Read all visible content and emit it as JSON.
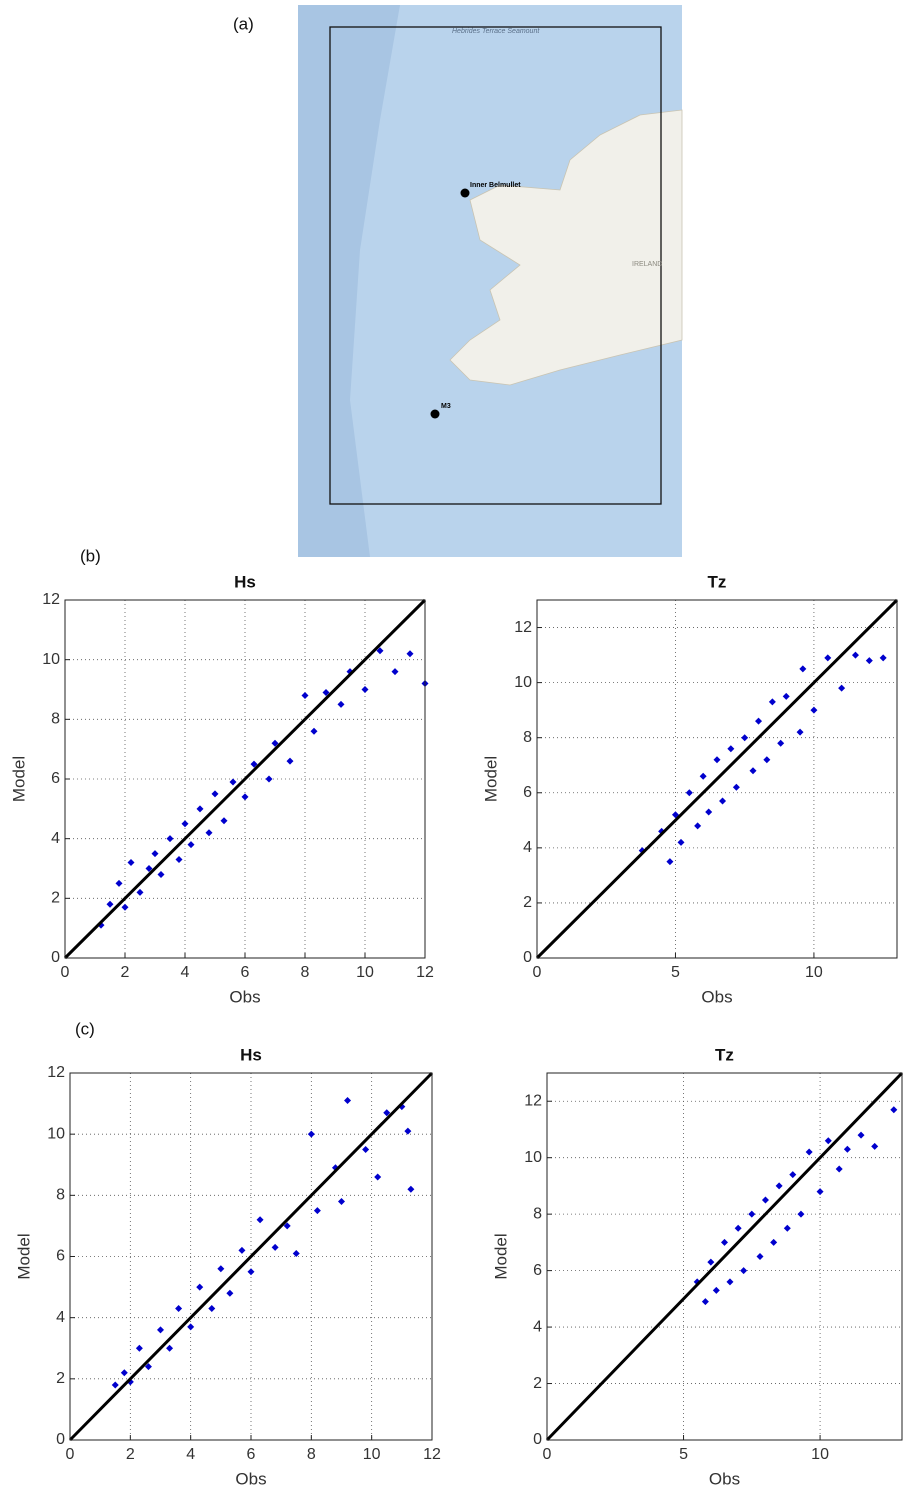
{
  "map": {
    "panel_label": "(a)",
    "labels": [
      "Inner Belmullet",
      "M3",
      "IRELAND",
      "Hebrides Terrace Seamount"
    ]
  },
  "chart_data": [
    {
      "type": "scatter",
      "panel_label": "(b)",
      "title": "Hs",
      "x_label": "Obs",
      "y_label": "Model",
      "color": "#0000cd",
      "grid": true,
      "xlim": [
        0,
        12
      ],
      "ylim": [
        0,
        12
      ],
      "xticks": [
        0,
        2,
        4,
        6,
        8,
        10,
        12
      ],
      "yticks": [
        0,
        2,
        4,
        6,
        8,
        10,
        12
      ],
      "x": [
        1.2,
        1.5,
        1.8,
        2,
        2.2,
        2.5,
        2.8,
        3,
        3.2,
        3.5,
        3.8,
        4,
        4.2,
        4.5,
        4.8,
        5,
        5.3,
        5.6,
        6,
        6.3,
        6.8,
        7,
        7.5,
        8,
        8.3,
        8.7,
        9.2,
        9.5,
        10,
        10.5,
        11,
        11.5,
        12
      ],
      "values": [
        1.1,
        1.8,
        2.5,
        1.7,
        3.2,
        2.2,
        3.0,
        3.5,
        2.8,
        4.0,
        3.3,
        4.5,
        3.8,
        5.0,
        4.2,
        5.5,
        4.6,
        5.9,
        5.4,
        6.5,
        6.0,
        7.2,
        6.6,
        8.8,
        7.6,
        8.9,
        8.5,
        9.6,
        9.0,
        10.3,
        9.6,
        10.2,
        9.2
      ]
    },
    {
      "type": "scatter",
      "title": "Tz",
      "x_label": "Obs",
      "y_label": "Model",
      "color": "#0000cd",
      "grid": true,
      "xlim": [
        0,
        13
      ],
      "ylim": [
        0,
        13
      ],
      "xticks": [
        0,
        5,
        10
      ],
      "yticks": [
        0,
        2,
        4,
        6,
        8,
        10,
        12
      ],
      "x": [
        3.8,
        4.5,
        4.8,
        5,
        5.2,
        5.5,
        5.8,
        6,
        6.2,
        6.5,
        6.7,
        7,
        7.2,
        7.5,
        7.8,
        8,
        8.3,
        8.5,
        8.8,
        9,
        9.5,
        9.6,
        10,
        10.5,
        11,
        11.5,
        12,
        12.5
      ],
      "values": [
        3.9,
        4.6,
        3.5,
        5.2,
        4.2,
        6.0,
        4.8,
        6.6,
        5.3,
        7.2,
        5.7,
        7.6,
        6.2,
        8.0,
        6.8,
        8.6,
        7.2,
        9.3,
        7.8,
        9.5,
        8.2,
        10.5,
        9.0,
        10.9,
        9.8,
        11.0,
        10.8,
        10.9
      ]
    },
    {
      "type": "scatter",
      "panel_label": "(c)",
      "title": "Hs",
      "x_label": "Obs",
      "y_label": "Model",
      "color": "#0000cd",
      "grid": true,
      "xlim": [
        0,
        12
      ],
      "ylim": [
        0,
        12
      ],
      "xticks": [
        0,
        2,
        4,
        6,
        8,
        10,
        12
      ],
      "yticks": [
        0,
        2,
        4,
        6,
        8,
        10,
        12
      ],
      "x": [
        1.5,
        1.8,
        2,
        2.3,
        2.6,
        3,
        3.3,
        3.6,
        4,
        4.3,
        4.7,
        5,
        5.3,
        5.7,
        6,
        6.3,
        6.8,
        7.2,
        7.5,
        8,
        8.2,
        8.8,
        9,
        9.2,
        9.8,
        10.2,
        10.5,
        11,
        11.3,
        11.2
      ],
      "values": [
        1.8,
        2.2,
        1.9,
        3.0,
        2.4,
        3.6,
        3.0,
        4.3,
        3.7,
        5.0,
        4.3,
        5.6,
        4.8,
        6.2,
        5.5,
        7.2,
        6.3,
        7.0,
        6.1,
        10.0,
        7.5,
        8.9,
        7.8,
        11.1,
        9.5,
        8.6,
        10.7,
        10.9,
        8.2,
        10.1
      ]
    },
    {
      "type": "scatter",
      "title": "Tz",
      "x_label": "Obs",
      "y_label": "Model",
      "color": "#0000cd",
      "grid": true,
      "xlim": [
        0,
        13
      ],
      "ylim": [
        0,
        13
      ],
      "xticks": [
        0,
        5,
        10
      ],
      "yticks": [
        0,
        2,
        4,
        6,
        8,
        10,
        12
      ],
      "x": [
        5.5,
        5.8,
        6,
        6.2,
        6.5,
        6.7,
        7,
        7.2,
        7.5,
        7.8,
        8,
        8.3,
        8.5,
        8.8,
        9,
        9.3,
        9.6,
        10,
        10.3,
        10.7,
        11,
        11.5,
        12,
        12.7
      ],
      "values": [
        5.6,
        4.9,
        6.3,
        5.3,
        7.0,
        5.6,
        7.5,
        6.0,
        8.0,
        6.5,
        8.5,
        7.0,
        9.0,
        7.5,
        9.4,
        8.0,
        10.2,
        8.8,
        10.6,
        9.6,
        10.3,
        10.8,
        10.4,
        11.7
      ]
    }
  ]
}
